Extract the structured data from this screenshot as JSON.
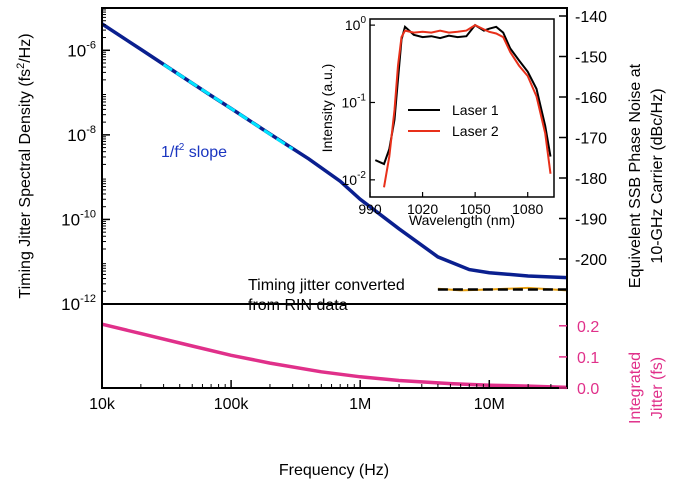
{
  "chart_data": [
    {
      "type": "line",
      "xscale": "log",
      "yscale": "log",
      "xlim": [
        10000,
        40000000
      ],
      "ylim": [
        1e-12,
        1e-05
      ],
      "ylabel": "Timing Jitter Spectral Density  (fs",
      "ylabel_sup": "2",
      "ylabel_end": "/Hz)",
      "y_ticks": [
        {
          "v": 1e-06,
          "base": "10",
          "exp": "-6"
        },
        {
          "v": 1e-08,
          "base": "10",
          "exp": "-8"
        },
        {
          "v": 1e-10,
          "base": "10",
          "exp": "-10"
        },
        {
          "v": 1e-12,
          "base": "10",
          "exp": "-12"
        }
      ],
      "right_axis": {
        "label_line1": "Equivelent SSB Phase Noise at",
        "label_line2": "10-GHz Carrier (dBc/Hz)",
        "ticks": [
          -140,
          -150,
          -160,
          -170,
          -180,
          -190,
          -200
        ]
      },
      "annotations": {
        "slope_label": "1/f",
        "slope_sup": "2",
        "slope_tail": " slope",
        "rin_line1": "Timing jitter converted",
        "rin_line2": "from RIN data"
      },
      "series": [
        {
          "color": "#0a1f8f",
          "x": [
            10000,
            20000,
            40000,
            70000,
            100000,
            200000,
            400000,
            700000,
            1000000,
            2000000,
            4000000,
            7000000,
            10000000,
            20000000,
            40000000
          ],
          "values": [
            4.2e-06,
            1.05e-06,
            2.6e-07,
            8.5e-08,
            4.2e-08,
            1.05e-08,
            2.7e-09,
            8e-10,
            3e-10,
            6e-11,
            1.3e-11,
            6.5e-12,
            5.5e-12,
            4.6e-12,
            4.2e-12
          ]
        },
        {
          "color": "#e8a010",
          "x": [
            4000000,
            6000000,
            10000000,
            20000000,
            40000000
          ],
          "values": [
            2.3e-12,
            2.1e-12,
            2.2e-12,
            2.4e-12,
            2.1e-12
          ]
        },
        {
          "color": "#00e5ff",
          "style": "dashed",
          "x": [
            30000,
            100000,
            300000
          ],
          "values": [
            4.6e-07,
            4.2e-08,
            4.6e-09
          ]
        },
        {
          "color": "#000000",
          "style": "dashed",
          "x": [
            4000000,
            40000000
          ],
          "values": [
            2.2e-12,
            2.2e-12
          ]
        }
      ]
    },
    {
      "type": "line",
      "xscale": "log",
      "xlim": [
        10000,
        40000000
      ],
      "ylim": [
        0,
        0.27
      ],
      "xlabel": "Frequency (Hz)",
      "x_ticks": [
        {
          "v": 10000,
          "label": "10k"
        },
        {
          "v": 100000,
          "label": "100k"
        },
        {
          "v": 1000000,
          "label": "1M"
        },
        {
          "v": 10000000,
          "label": "10M"
        }
      ],
      "right_axis": {
        "label_line1": "Integrated",
        "label_line2": "Jitter (fs)",
        "ticks": [
          "0.2",
          "0.1",
          "0.0"
        ]
      },
      "series": [
        {
          "color": "#e0308a",
          "x": [
            10000,
            20000,
            50000,
            100000,
            200000,
            500000,
            1000000,
            2000000,
            5000000,
            10000000,
            20000000,
            40000000
          ],
          "values": [
            0.205,
            0.175,
            0.135,
            0.105,
            0.08,
            0.052,
            0.036,
            0.024,
            0.014,
            0.009,
            0.006,
            0.002
          ]
        }
      ]
    },
    {
      "type": "line",
      "yscale": "log",
      "xlim": [
        990,
        1095
      ],
      "ylim": [
        0.006,
        1.2
      ],
      "xlabel": "Wavelength (nm)",
      "ylabel": "Intensity (a.u.)",
      "x_ticks": [
        990,
        1020,
        1050,
        1080
      ],
      "y_ticks": [
        {
          "v": 1,
          "base": "10",
          "exp": "0"
        },
        {
          "v": 0.1,
          "base": "10",
          "exp": "-1"
        },
        {
          "v": 0.01,
          "base": "10",
          "exp": "-2"
        }
      ],
      "legend_position": "center",
      "series": [
        {
          "name": "Laser 1",
          "color": "#000000",
          "x": [
            993,
            998,
            1001,
            1004,
            1006,
            1008,
            1010,
            1015,
            1020,
            1025,
            1030,
            1035,
            1040,
            1045,
            1050,
            1055,
            1058,
            1062,
            1066,
            1070,
            1075,
            1080,
            1085,
            1090,
            1093
          ],
          "values": [
            0.018,
            0.016,
            0.025,
            0.06,
            0.2,
            0.65,
            0.95,
            0.75,
            0.7,
            0.72,
            0.68,
            0.73,
            0.7,
            0.72,
            1.0,
            0.85,
            0.9,
            0.95,
            0.8,
            0.5,
            0.35,
            0.25,
            0.15,
            0.05,
            0.02
          ]
        },
        {
          "name": "Laser 2",
          "color": "#e8301a",
          "x": [
            998,
            1001,
            1004,
            1006,
            1008,
            1010,
            1015,
            1020,
            1025,
            1030,
            1035,
            1040,
            1045,
            1050,
            1055,
            1058,
            1062,
            1066,
            1070,
            1075,
            1080,
            1085,
            1090,
            1093
          ],
          "values": [
            0.008,
            0.02,
            0.08,
            0.3,
            0.7,
            0.85,
            0.8,
            0.82,
            0.8,
            0.85,
            0.8,
            0.82,
            0.85,
            1.0,
            0.88,
            0.82,
            0.78,
            0.7,
            0.45,
            0.3,
            0.22,
            0.12,
            0.04,
            0.012
          ]
        }
      ]
    }
  ]
}
